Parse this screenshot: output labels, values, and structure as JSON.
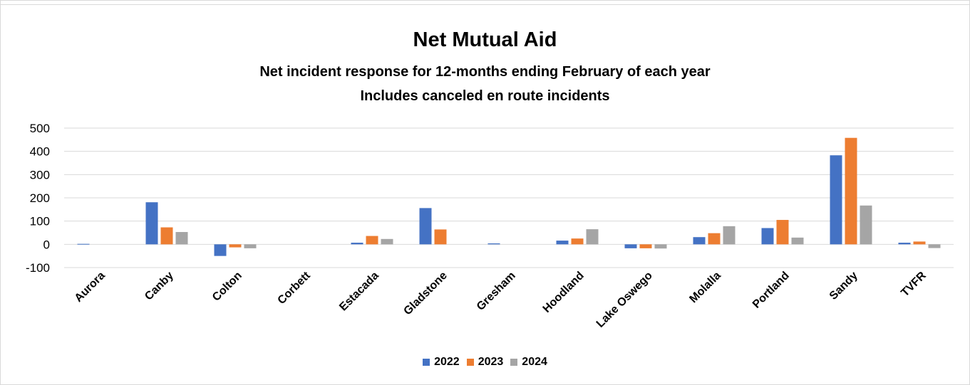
{
  "chart_data": {
    "type": "bar",
    "title": "Net Mutual Aid",
    "subtitle_lines": [
      "Net incident response for 12-months ending February of each year",
      "Includes canceled en route incidents"
    ],
    "categories": [
      "Aurora",
      "Canby",
      "Colton",
      "Corbett",
      "Estacada",
      "Gladstone",
      "Gresham",
      "Hoodland",
      "Lake Oswego",
      "Molalla",
      "Portland",
      "Sandy",
      "TVFR"
    ],
    "series": [
      {
        "name": "2022",
        "color": "#4472c4",
        "values": [
          2,
          181,
          -50,
          0,
          7,
          156,
          4,
          16,
          -17,
          31,
          70,
          383,
          7
        ]
      },
      {
        "name": "2023",
        "color": "#ed7d31",
        "values": [
          0,
          73,
          -13,
          0,
          36,
          64,
          0,
          25,
          -17,
          48,
          105,
          458,
          12
        ]
      },
      {
        "name": "2024",
        "color": "#a5a5a5",
        "values": [
          0,
          53,
          -17,
          0,
          23,
          0,
          0,
          65,
          -18,
          78,
          29,
          167,
          -16
        ]
      }
    ],
    "ylim": [
      -100,
      500
    ],
    "yticks": [
      -100,
      0,
      100,
      200,
      300,
      400,
      500
    ],
    "grid": true,
    "legend_position": "bottom"
  }
}
